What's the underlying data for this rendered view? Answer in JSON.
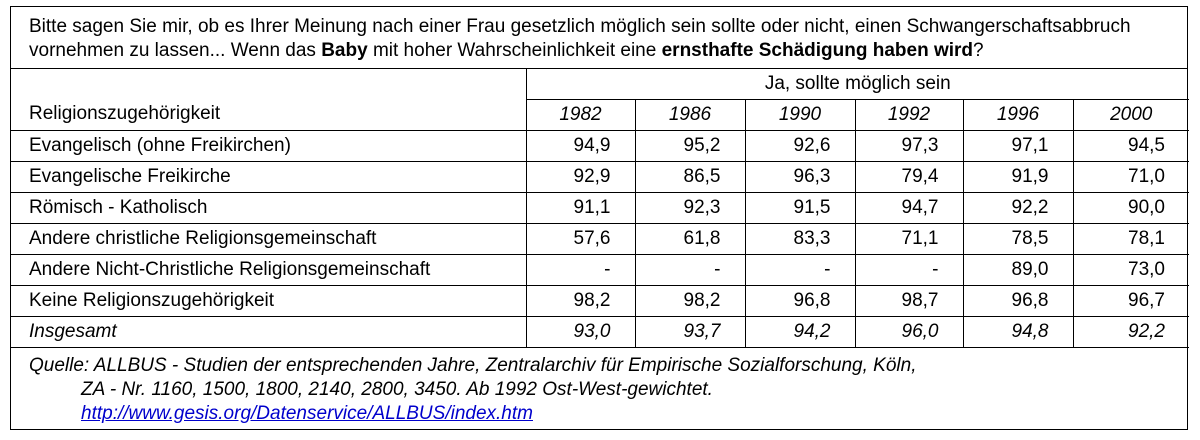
{
  "question": {
    "line1": "Bitte sagen Sie mir, ob es Ihrer Meinung nach einer Frau gesetzlich möglich sein sollte oder nicht, einen Schwangerschaftsabbruch",
    "line2_pre": "vornehmen zu lassen... Wenn das ",
    "line2_bold1": "Baby",
    "line2_mid": " mit hoher Wahrscheinlichkeit eine ",
    "line2_bold2": "ernsthafte Schädigung haben wird",
    "line2_post": "?"
  },
  "chart_data": {
    "type": "table",
    "column_group_header": "Ja, sollte möglich sein",
    "row_header": "Religionszugehörigkeit",
    "years": [
      "1982",
      "1986",
      "1990",
      "1992",
      "1996",
      "2000"
    ],
    "rows": [
      {
        "label": "Evangelisch (ohne Freikirchen)",
        "values": [
          "94,9",
          "95,2",
          "92,6",
          "97,3",
          "97,1",
          "94,5"
        ]
      },
      {
        "label": "Evangelische Freikirche",
        "values": [
          "92,9",
          "86,5",
          "96,3",
          "79,4",
          "91,9",
          "71,0"
        ]
      },
      {
        "label": "Römisch - Katholisch",
        "values": [
          "91,1",
          "92,3",
          "91,5",
          "94,7",
          "92,2",
          "90,0"
        ]
      },
      {
        "label": "Andere christliche Religionsgemeinschaft",
        "values": [
          "57,6",
          "61,8",
          "83,3",
          "71,1",
          "78,5",
          "78,1"
        ]
      },
      {
        "label": "Andere Nicht-Christliche Religionsgemeinschaft",
        "values": [
          "-",
          "-",
          "-",
          "-",
          "89,0",
          "73,0"
        ]
      },
      {
        "label": "Keine Religionszugehörigkeit",
        "values": [
          "98,2",
          "98,2",
          "96,8",
          "98,7",
          "96,8",
          "96,7"
        ]
      },
      {
        "label": "Insgesamt",
        "values": [
          "93,0",
          "93,7",
          "94,2",
          "96,0",
          "94,8",
          "92,2"
        ],
        "total": true
      }
    ]
  },
  "source": {
    "line1": "Quelle: ALLBUS - Studien der entsprechenden Jahre, Zentralarchiv für Empirische Sozialforschung, Köln,",
    "line2": "ZA - Nr.  1160, 1500, 1800, 2140, 2800, 3450. Ab 1992 Ost-West-gewichtet.",
    "link": "http://www.gesis.org/Datenservice/ALLBUS/index.htm"
  }
}
